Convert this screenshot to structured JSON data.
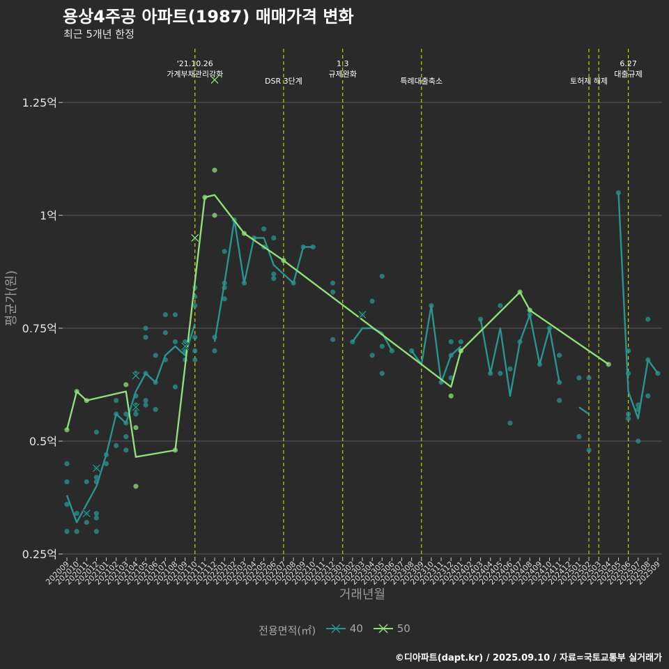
{
  "title": "용상4주공 아파트(1987) 매매가격 변화",
  "subtitle": "최근 5개년 한정",
  "caption": "©디아파트(dapt.kr) / 2025.09.10 / 자료=국토교통부 실거래가",
  "legend_title": "전용면적(㎡)",
  "colors": {
    "background": "#2b2a2a",
    "grid": "#5a5a5a",
    "series_40": "#2a9490",
    "series_50": "#8ee07a",
    "event_line": "#c8d400"
  },
  "chart_data": {
    "type": "line",
    "xlabel": "거래년월",
    "ylabel": "평균가(원)",
    "ylim": [
      0.25,
      1.25
    ],
    "yticks": [
      {
        "v": 0.25,
        "label": "0.25억"
      },
      {
        "v": 0.5,
        "label": "0.5억"
      },
      {
        "v": 0.75,
        "label": "0.75억"
      },
      {
        "v": 1.0,
        "label": "1억"
      },
      {
        "v": 1.25,
        "label": "1.25억"
      }
    ],
    "months": [
      "202009",
      "202010",
      "202011",
      "202012",
      "202101",
      "202102",
      "202103",
      "202104",
      "202105",
      "202106",
      "202107",
      "202108",
      "202109",
      "202110",
      "202111",
      "202112",
      "202201",
      "202202",
      "202203",
      "202204",
      "202205",
      "202206",
      "202207",
      "202208",
      "202209",
      "202210",
      "202211",
      "202212",
      "202301",
      "202302",
      "202303",
      "202304",
      "202305",
      "202306",
      "202307",
      "202308",
      "202309",
      "202310",
      "202311",
      "202312",
      "202401",
      "202402",
      "202403",
      "202404",
      "202405",
      "202406",
      "202407",
      "202408",
      "202409",
      "202410",
      "202411",
      "202412",
      "202501",
      "202502",
      "202503",
      "202504",
      "202505",
      "202506",
      "202507",
      "202508",
      "202509"
    ],
    "tick_labels": [
      "202009",
      "202010",
      "202011",
      "202012",
      "202101",
      "202102",
      "202103",
      "202104",
      "202105",
      "202106",
      "202107",
      "202108",
      "202109",
      "202110",
      "202111",
      "202112",
      "202201",
      "202202",
      "202203",
      "202204",
      "202205",
      "202206",
      "202207",
      "202208",
      "202209",
      "202210",
      "202211",
      "202212",
      "202301",
      "202302",
      "202303",
      "202304",
      "202305",
      "202306",
      "202307",
      "202308",
      "202309",
      "202310",
      "202311",
      "202312",
      "202401",
      "202402",
      "202403",
      "202404",
      "202405",
      "202406",
      "202407",
      "202408",
      "202409",
      "202410",
      "202411",
      "202412",
      "202501",
      "202502",
      "202503",
      "202504",
      "202505",
      "202506",
      "202507",
      "202508",
      "202509"
    ],
    "series": [
      {
        "name": "40",
        "line": [
          [
            "202009",
            0.38
          ],
          [
            "202010",
            0.32
          ],
          [
            "202011",
            0.36
          ],
          [
            "202012",
            0.4
          ],
          [
            "202101",
            0.47
          ],
          [
            "202102",
            0.56
          ],
          [
            "202103",
            0.54
          ],
          [
            "202104",
            0.61
          ],
          [
            "202105",
            0.65
          ],
          [
            "202106",
            0.63
          ],
          [
            "202107",
            0.69
          ],
          [
            "202108",
            0.71
          ],
          [
            "202109",
            0.69
          ],
          [
            "202110",
            0.76
          ],
          null,
          [
            "202112",
            0.72
          ],
          [
            "202201",
            0.85
          ],
          [
            "202202",
            0.99
          ],
          [
            "202203",
            0.85
          ],
          [
            "202204",
            0.95
          ],
          [
            "202205",
            0.95
          ],
          [
            "202206",
            0.89
          ],
          [
            "202207",
            0.87
          ],
          [
            "202208",
            0.85
          ],
          [
            "202209",
            0.93
          ],
          [
            "202210",
            0.93
          ],
          null,
          [
            "202302",
            0.72
          ],
          [
            "202303",
            0.75
          ],
          [
            "202304",
            0.75
          ],
          [
            "202305",
            0.74
          ],
          [
            "202306",
            0.7
          ],
          null,
          [
            "202308",
            0.7
          ],
          [
            "202309",
            0.67
          ],
          [
            "202310",
            0.8
          ],
          [
            "202311",
            0.63
          ],
          [
            "202312",
            0.69
          ],
          [
            "202401",
            0.71
          ],
          null,
          [
            "202403",
            0.77
          ],
          [
            "202404",
            0.65
          ],
          [
            "202405",
            0.75
          ],
          [
            "202406",
            0.6
          ],
          [
            "202407",
            0.72
          ],
          [
            "202408",
            0.78
          ],
          [
            "202409",
            0.67
          ],
          [
            "202410",
            0.75
          ],
          [
            "202411",
            0.63
          ],
          null,
          [
            "202501",
            0.575
          ],
          [
            "202502",
            0.56
          ],
          null,
          [
            "202505",
            1.05
          ],
          [
            "202506",
            0.61
          ],
          [
            "202507",
            0.55
          ],
          [
            "202508",
            0.68
          ],
          [
            "202509",
            0.65
          ]
        ],
        "points": [
          [
            "202009",
            0.45
          ],
          [
            "202009",
            0.41
          ],
          [
            "202009",
            0.36
          ],
          [
            "202009",
            0.3
          ],
          [
            "202010",
            0.34
          ],
          [
            "202010",
            0.3
          ],
          [
            "202011",
            0.41
          ],
          [
            "202011",
            0.34
          ],
          [
            "202011",
            0.32
          ],
          [
            "202012",
            0.52
          ],
          [
            "202012",
            0.44
          ],
          [
            "202012",
            0.42
          ],
          [
            "202012",
            0.41
          ],
          [
            "202012",
            0.34
          ],
          [
            "202012",
            0.33
          ],
          [
            "202012",
            0.3
          ],
          [
            "202101",
            0.47
          ],
          [
            "202101",
            0.45
          ],
          [
            "202102",
            0.59
          ],
          [
            "202102",
            0.56
          ],
          [
            "202102",
            0.49
          ],
          [
            "202103",
            0.56
          ],
          [
            "202103",
            0.54
          ],
          [
            "202103",
            0.51
          ],
          [
            "202103",
            0.48
          ],
          [
            "202104",
            0.65
          ],
          [
            "202104",
            0.6
          ],
          [
            "202104",
            0.58
          ],
          [
            "202104",
            0.57
          ],
          [
            "202104",
            0.56
          ],
          [
            "202105",
            0.75
          ],
          [
            "202105",
            0.73
          ],
          [
            "202105",
            0.65
          ],
          [
            "202105",
            0.59
          ],
          [
            "202105",
            0.58
          ],
          [
            "202106",
            0.69
          ],
          [
            "202106",
            0.63
          ],
          [
            "202106",
            0.57
          ],
          [
            "202107",
            0.78
          ],
          [
            "202107",
            0.74
          ],
          [
            "202107",
            0.68
          ],
          [
            "202108",
            0.78
          ],
          [
            "202108",
            0.72
          ],
          [
            "202108",
            0.62
          ],
          [
            "202109",
            0.72
          ],
          [
            "202109",
            0.7
          ],
          [
            "202109",
            0.68
          ],
          [
            "202110",
            0.84
          ],
          [
            "202110",
            0.82
          ],
          [
            "202110",
            0.8
          ],
          [
            "202110",
            0.73
          ],
          [
            "202110",
            0.7
          ],
          [
            "202110",
            0.68
          ],
          [
            "202112",
            0.73
          ],
          [
            "202112",
            0.7
          ],
          [
            "202201",
            0.92
          ],
          [
            "202201",
            0.85
          ],
          [
            "202201",
            0.84
          ],
          [
            "202201",
            0.815
          ],
          [
            "202202",
            0.99
          ],
          [
            "202203",
            0.85
          ],
          [
            "202204",
            0.95
          ],
          [
            "202205",
            0.97
          ],
          [
            "202205",
            0.93
          ],
          [
            "202206",
            0.95
          ],
          [
            "202206",
            0.87
          ],
          [
            "202206",
            0.86
          ],
          [
            "202208",
            0.85
          ],
          [
            "202209",
            0.93
          ],
          [
            "202210",
            0.93
          ],
          [
            "202212",
            0.85
          ],
          [
            "202212",
            0.83
          ],
          [
            "202212",
            0.725
          ],
          [
            "202302",
            0.72
          ],
          [
            "202303",
            0.78
          ],
          [
            "202304",
            0.81
          ],
          [
            "202304",
            0.69
          ],
          [
            "202305",
            0.865
          ],
          [
            "202305",
            0.71
          ],
          [
            "202305",
            0.65
          ],
          [
            "202306",
            0.7
          ],
          [
            "202308",
            0.7
          ],
          [
            "202310",
            0.8
          ],
          [
            "202311",
            0.63
          ],
          [
            "202312",
            0.72
          ],
          [
            "202312",
            0.69
          ],
          [
            "202312",
            0.64
          ],
          [
            "202401",
            0.72
          ],
          [
            "202401",
            0.7
          ],
          [
            "202403",
            0.77
          ],
          [
            "202404",
            0.65
          ],
          [
            "202405",
            0.8
          ],
          [
            "202405",
            0.65
          ],
          [
            "202406",
            0.66
          ],
          [
            "202406",
            0.54
          ],
          [
            "202407",
            0.72
          ],
          [
            "202408",
            0.78
          ],
          [
            "202409",
            0.67
          ],
          [
            "202410",
            0.75
          ],
          [
            "202411",
            0.69
          ],
          [
            "202411",
            0.63
          ],
          [
            "202411",
            0.59
          ],
          [
            "202501",
            0.64
          ],
          [
            "202501",
            0.51
          ],
          [
            "202502",
            0.64
          ],
          [
            "202502",
            0.48
          ],
          [
            "202505",
            1.05
          ],
          [
            "202506",
            0.7
          ],
          [
            "202506",
            0.65
          ],
          [
            "202506",
            0.56
          ],
          [
            "202506",
            0.55
          ],
          [
            "202507",
            0.58
          ],
          [
            "202507",
            0.57
          ],
          [
            "202507",
            0.5
          ],
          [
            "202508",
            0.77
          ],
          [
            "202508",
            0.68
          ],
          [
            "202508",
            0.6
          ],
          [
            "202509",
            0.65
          ]
        ],
        "cancelled": [
          [
            "202012",
            0.44
          ],
          [
            "202011",
            0.34
          ],
          [
            "202104",
            0.645
          ],
          [
            "202104",
            0.575
          ],
          [
            "202109",
            0.71
          ],
          [
            "202303",
            0.78
          ]
        ]
      },
      {
        "name": "50",
        "line": [
          [
            "202009",
            0.525
          ],
          [
            "202010",
            0.61
          ],
          [
            "202011",
            0.59
          ],
          [
            "202103",
            0.61
          ],
          [
            "202104",
            0.465
          ],
          [
            "202108",
            0.48
          ],
          [
            "202111",
            1.04
          ],
          [
            "202112",
            1.045
          ],
          [
            "202203",
            0.96
          ],
          [
            "202207",
            0.9
          ],
          [
            "202309",
            0.67
          ],
          [
            "202312",
            0.62
          ],
          [
            "202401",
            0.7
          ],
          [
            "202407",
            0.83
          ],
          [
            "202408",
            0.79
          ],
          [
            "202504",
            0.67
          ]
        ],
        "points": [
          [
            "202009",
            0.525
          ],
          [
            "202010",
            0.61
          ],
          [
            "202011",
            0.59
          ],
          [
            "202103",
            0.625
          ],
          [
            "202104",
            0.53
          ],
          [
            "202104",
            0.4
          ],
          [
            "202108",
            0.48
          ],
          [
            "202111",
            1.04
          ],
          [
            "202112",
            1.1
          ],
          [
            "202112",
            1.0
          ],
          [
            "202203",
            0.96
          ],
          [
            "202207",
            0.9
          ],
          [
            "202312",
            0.6
          ],
          [
            "202401",
            0.7
          ],
          [
            "202407",
            0.83
          ],
          [
            "202408",
            0.79
          ],
          [
            "202504",
            0.67
          ]
        ],
        "cancelled": [
          [
            "202110",
            0.95
          ],
          [
            "202112",
            1.3
          ]
        ]
      }
    ],
    "events": [
      {
        "month": "202110",
        "label": "'21.10.26\n가계부채관리강화"
      },
      {
        "month": "202207",
        "label": "DSR 3단계"
      },
      {
        "month": "202301",
        "label": "1.3\n규제완화"
      },
      {
        "month": "202309",
        "label": "특례대출축소"
      },
      {
        "month": "202502",
        "label": "토허제 해제"
      },
      {
        "month": "202503",
        "label": ""
      },
      {
        "month": "202506",
        "label": "6.27\n대출규제"
      }
    ]
  }
}
